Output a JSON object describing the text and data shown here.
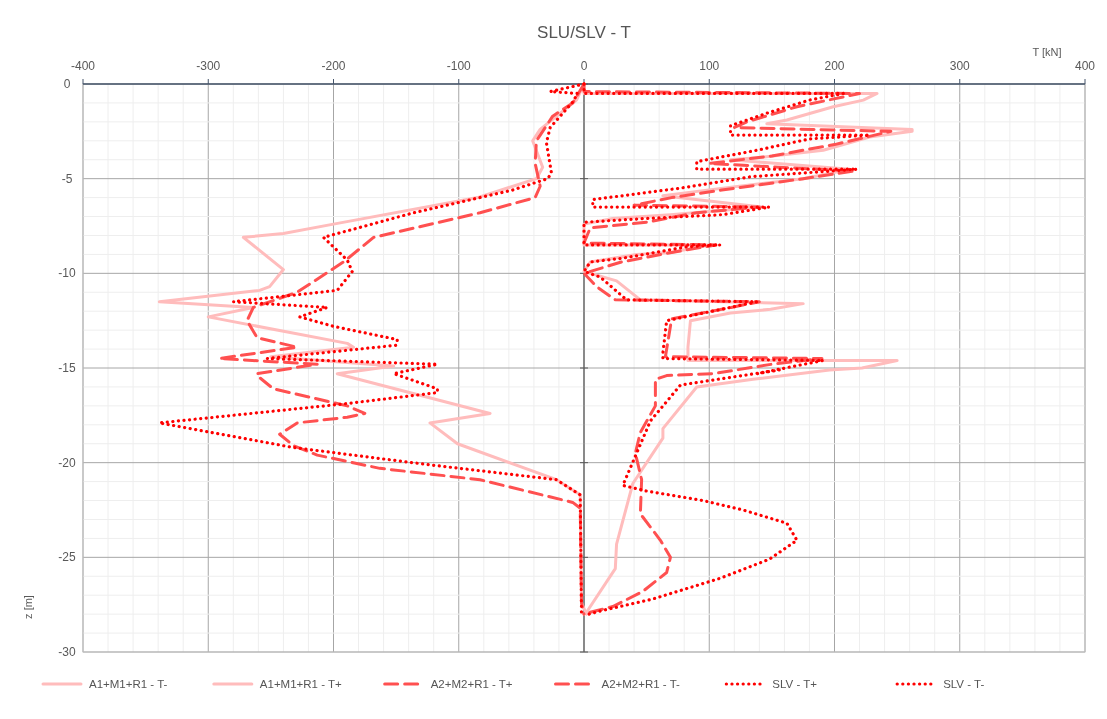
{
  "chart_data": {
    "type": "line",
    "title": "SLU/SLV - T",
    "xlabel": "T [kN]",
    "ylabel": "z [m]",
    "xlim": [
      -400,
      400
    ],
    "ylim": [
      -30,
      0
    ],
    "xticks": [
      -400,
      {
        "value": -380,
        "label": null
      },
      {
        "value": -360,
        "label": null
      },
      {
        "value": -340,
        "label": null
      },
      {
        "value": -320,
        "label": null
      },
      -300,
      {
        "value": -280,
        "label": null
      },
      {
        "value": -260,
        "label": null
      },
      {
        "value": -240,
        "label": null
      },
      {
        "value": -220,
        "label": null
      },
      -200,
      {
        "value": -180,
        "label": null
      },
      {
        "value": -160,
        "label": null
      },
      {
        "value": -140,
        "label": null
      },
      {
        "value": -120,
        "label": null
      },
      -100,
      {
        "value": -80,
        "label": null
      },
      {
        "value": -60,
        "label": null
      },
      {
        "value": -40,
        "label": null
      },
      {
        "value": -20,
        "label": null
      },
      0,
      {
        "value": 20,
        "label": null
      },
      {
        "value": 40,
        "label": null
      },
      {
        "value": 60,
        "label": null
      },
      {
        "value": 80,
        "label": null
      },
      100,
      {
        "value": 120,
        "label": null
      },
      {
        "value": 140,
        "label": null
      },
      {
        "value": 160,
        "label": null
      },
      {
        "value": 180,
        "label": null
      },
      200,
      {
        "value": 220,
        "label": null
      },
      {
        "value": 240,
        "label": null
      },
      {
        "value": 260,
        "label": null
      },
      {
        "value": 280,
        "label": null
      },
      300,
      {
        "value": 320,
        "label": null
      },
      {
        "value": 340,
        "label": null
      },
      {
        "value": 360,
        "label": null
      },
      {
        "value": 380,
        "label": null
      },
      400
    ],
    "yticks": [
      0,
      {
        "value": -1,
        "label": null
      },
      {
        "value": -2,
        "label": null
      },
      {
        "value": -3,
        "label": null
      },
      {
        "value": -4,
        "label": null
      },
      -5,
      {
        "value": -6,
        "label": null
      },
      {
        "value": -7,
        "label": null
      },
      {
        "value": -8,
        "label": null
      },
      {
        "value": -9,
        "label": null
      },
      -10,
      {
        "value": -11,
        "label": null
      },
      {
        "value": -12,
        "label": null
      },
      {
        "value": -13,
        "label": null
      },
      {
        "value": -14,
        "label": null
      },
      -15,
      {
        "value": -16,
        "label": null
      },
      {
        "value": -17,
        "label": null
      },
      {
        "value": -18,
        "label": null
      },
      {
        "value": -19,
        "label": null
      },
      -20,
      {
        "value": -21,
        "label": null
      },
      {
        "value": -22,
        "label": null
      },
      {
        "value": -23,
        "label": null
      },
      {
        "value": -24,
        "label": null
      },
      -25,
      {
        "value": -26,
        "label": null
      },
      {
        "value": -27,
        "label": null
      },
      {
        "value": -28,
        "label": null
      },
      {
        "value": -29,
        "label": null
      },
      -30
    ],
    "grid": true,
    "legend": "bottom",
    "series": [
      {
        "name": "A1+M1+R1 - T-",
        "color": "#ffbcbc",
        "line_style": "solid",
        "x": [
          0,
          -6,
          -35,
          -41,
          -33,
          -38,
          -85,
          -200,
          -240,
          -272,
          -240,
          -251,
          -259,
          -339,
          -264,
          -300,
          -189,
          -184,
          -250,
          -152,
          -197,
          -75,
          -123,
          -101,
          -22,
          -3,
          -2,
          2
        ],
        "values": [
          0,
          -0.85,
          -2.4,
          -3,
          -4.4,
          -5,
          -6,
          -7.4,
          -7.9,
          -8.1,
          -9.8,
          -10.7,
          -10.9,
          -11.5,
          -11.8,
          -12.3,
          -13.7,
          -13.9,
          -14.4,
          -14.9,
          -15.3,
          -17.4,
          -17.9,
          -19,
          -20.9,
          -21.7,
          -27.4,
          -28
        ]
      },
      {
        "name": "A1+M1+R1 - T+",
        "color": "#ffbcbc",
        "line_style": "solid",
        "x": [
          0,
          0,
          234,
          223,
          199,
          162,
          146,
          262,
          262,
          228,
          191,
          138,
          117,
          212,
          175,
          111,
          63,
          142,
          69,
          23,
          0,
          0,
          100,
          69,
          42,
          5,
          0,
          26,
          45,
          175,
          149,
          117,
          85,
          83,
          83,
          250,
          222,
          196,
          135,
          90,
          63,
          63,
          39,
          26,
          25,
          2,
          0
        ],
        "values": [
          0,
          -0.5,
          -0.5,
          -0.85,
          -1.2,
          -1.9,
          -2.1,
          -2.4,
          -2.5,
          -2.8,
          -3.5,
          -3.9,
          -4,
          -4.5,
          -5,
          -5.5,
          -5.9,
          -6.5,
          -6.9,
          -7.1,
          -7.4,
          -8.5,
          -8.5,
          -8.9,
          -9,
          -9.4,
          -9.9,
          -10.4,
          -11.4,
          -11.6,
          -11.9,
          -12.1,
          -12.5,
          -13.9,
          -14.6,
          -14.6,
          -15,
          -15.1,
          -15.6,
          -16,
          -18.2,
          -18.7,
          -21.1,
          -24.3,
          -25.6,
          -27.9,
          -28
        ]
      },
      {
        "name": "A2+M2+R1 - T+",
        "color": "#ff5050",
        "line_style": "dashed",
        "x": [
          0,
          0,
          220,
          170,
          130,
          120,
          245,
          200,
          150,
          100,
          215,
          175,
          110,
          70,
          40,
          140,
          90,
          50,
          5,
          0,
          105,
          70,
          30,
          0,
          10,
          25,
          140,
          110,
          70,
          65,
          190,
          150,
          103,
          66,
          57,
          57,
          45,
          41,
          46,
          45,
          61,
          69,
          66,
          47,
          23,
          5,
          0
        ],
        "values": [
          0,
          -0.4,
          -0.5,
          -1.2,
          -2,
          -2.3,
          -2.5,
          -3.2,
          -3.8,
          -4.2,
          -4.6,
          -5,
          -5.6,
          -6,
          -6.4,
          -6.5,
          -6.8,
          -7.3,
          -7.6,
          -8.4,
          -8.5,
          -8.9,
          -9.4,
          -10,
          -10.7,
          -11.4,
          -11.5,
          -11.9,
          -12.4,
          -14.4,
          -14.5,
          -14.8,
          -15.3,
          -15.4,
          -15.6,
          -17,
          -18.4,
          -19.5,
          -20.9,
          -22.7,
          -24.1,
          -25,
          -25.8,
          -26.8,
          -27.6,
          -27.9,
          -28
        ]
      },
      {
        "name": "A2+M2+R1 - T-",
        "color": "#ff5050",
        "line_style": "dashed",
        "x": [
          0,
          -9,
          -25,
          -38,
          -39,
          -35,
          -39,
          -83,
          -168,
          -192,
          -229,
          -264,
          -269,
          -261,
          -229,
          -291,
          -213,
          -261,
          -261,
          -248,
          -189,
          -175,
          -189,
          -229,
          -243,
          -232,
          -213,
          -163,
          -83,
          -9,
          -3,
          -2,
          0
        ],
        "values": [
          0,
          -1,
          -1.7,
          -3,
          -4.2,
          -5.4,
          -6,
          -6.8,
          -8.1,
          -9.4,
          -11,
          -11.8,
          -12.5,
          -13.4,
          -13.9,
          -14.5,
          -14.8,
          -15.3,
          -15.4,
          -16.1,
          -17,
          -17.4,
          -17.6,
          -17.9,
          -18.5,
          -19.1,
          -19.6,
          -20.3,
          -20.9,
          -22.1,
          -22.4,
          -27.4,
          -28
        ]
      },
      {
        "name": "SLV - T+",
        "color": "#ff0000",
        "line_style": "dotted",
        "x": [
          0,
          0,
          207,
          180,
          148,
          117,
          117,
          228,
          180,
          138,
          90,
          90,
          218,
          133,
          77,
          31,
          7,
          7,
          148,
          111,
          50,
          0,
          0,
          109,
          82,
          31,
          5,
          0,
          13,
          34,
          138,
          117,
          66,
          63,
          63,
          191,
          138,
          156,
          77,
          53,
          42,
          31,
          50,
          95,
          127,
          162,
          170,
          148,
          109,
          55,
          15,
          4
        ],
        "values": [
          0,
          -0.5,
          -0.5,
          -0.85,
          -1.5,
          -2.2,
          -2.7,
          -2.7,
          -2.9,
          -3.5,
          -4.1,
          -4.5,
          -4.5,
          -4.9,
          -5.5,
          -5.9,
          -6.1,
          -6.5,
          -6.5,
          -6.9,
          -7.1,
          -7.3,
          -8.5,
          -8.5,
          -8.6,
          -9.2,
          -9.4,
          -9.9,
          -10.2,
          -11.4,
          -11.5,
          -11.8,
          -12.5,
          -14.2,
          -14.5,
          -14.6,
          -15.3,
          -15.1,
          -15.9,
          -17.8,
          -19.5,
          -21.2,
          -21.5,
          -22,
          -22.5,
          -23.2,
          -24.1,
          -25.1,
          -26.1,
          -27.2,
          -27.8,
          -28
        ]
      },
      {
        "name": "SLV - T-",
        "color": "#ff0000",
        "line_style": "dotted",
        "x": [
          0,
          -27,
          -5,
          -9,
          -27,
          -30,
          -26,
          -29,
          -57,
          -136,
          -208,
          -189,
          -185,
          -197,
          -280,
          -205,
          -227,
          -200,
          -149,
          -150,
          -253,
          -117,
          -152,
          -117,
          -117,
          -192,
          -339,
          -232,
          -125,
          -22,
          -3,
          -2,
          0
        ],
        "values": [
          0,
          -0.4,
          -0.5,
          -0.95,
          -2.3,
          -3.1,
          -4.7,
          -5,
          -5.6,
          -6.8,
          -8.1,
          -9.3,
          -9.9,
          -10.9,
          -11.5,
          -11.8,
          -12.3,
          -12.8,
          -13.5,
          -13.8,
          -14.5,
          -14.8,
          -15.3,
          -16.1,
          -16.3,
          -16.9,
          -17.9,
          -19.2,
          -20.1,
          -20.9,
          -21.7,
          -28,
          -28
        ]
      }
    ]
  }
}
